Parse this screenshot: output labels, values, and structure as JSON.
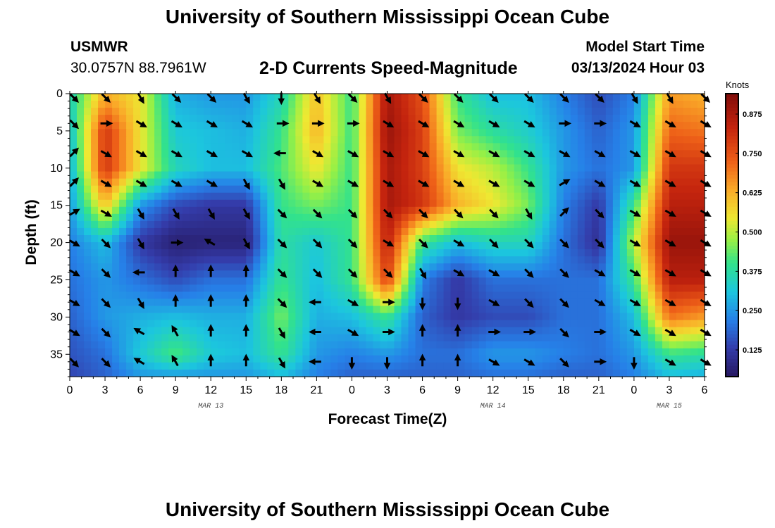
{
  "header": {
    "title": "University of Southern Mississippi Ocean Cube",
    "station": "USMWR",
    "coords": "30.0757N  88.7961W",
    "subtitle": "2-D Currents Speed-Magnitude",
    "start_label": "Model Start Time",
    "start_value": "03/13/2024 Hour 03"
  },
  "footer": {
    "title": "University of Southern Mississippi Ocean Cube"
  },
  "chart_data": {
    "type": "heatmap",
    "title": "2-D Currents Speed-Magnitude",
    "xlabel": "Forecast Time(Z)",
    "ylabel": "Depth (ft)",
    "x_range_hours": [
      0,
      54
    ],
    "ylim": [
      38,
      0
    ],
    "x_tick_labels": [
      "0",
      "3",
      "6",
      "9",
      "12",
      "15",
      "18",
      "21",
      "0",
      "3",
      "6",
      "9",
      "12",
      "15",
      "18",
      "21",
      "0",
      "3",
      "6"
    ],
    "y_ticks": [
      0,
      5,
      10,
      15,
      20,
      25,
      30,
      35
    ],
    "date_labels": [
      {
        "text": "MAR 13",
        "hour": 12
      },
      {
        "text": "MAR 14",
        "hour": 36
      },
      {
        "text": "MAR 15",
        "hour": 51
      }
    ],
    "colorbar": {
      "unit": "Knots",
      "min": 0.04,
      "max": 0.94,
      "ticks": [
        "0.125",
        "0.250",
        "0.375",
        "0.500",
        "0.625",
        "0.750",
        "0.875"
      ]
    },
    "speed_knots": {
      "x_hours": [
        0,
        3,
        6,
        9,
        12,
        15,
        18,
        21,
        24,
        27,
        30,
        33,
        36,
        39,
        42,
        45,
        48,
        51,
        54
      ],
      "depths_ft": [
        0,
        5,
        10,
        15,
        20,
        25,
        30,
        35,
        38
      ],
      "values": [
        [
          0.35,
          0.62,
          0.55,
          0.28,
          0.25,
          0.25,
          0.35,
          0.6,
          0.4,
          0.88,
          0.75,
          0.4,
          0.3,
          0.3,
          0.22,
          0.15,
          0.22,
          0.65,
          0.62
        ],
        [
          0.3,
          0.8,
          0.55,
          0.32,
          0.3,
          0.28,
          0.4,
          0.62,
          0.4,
          0.9,
          0.78,
          0.45,
          0.38,
          0.33,
          0.25,
          0.18,
          0.25,
          0.72,
          0.7
        ],
        [
          0.28,
          0.8,
          0.55,
          0.35,
          0.3,
          0.3,
          0.42,
          0.55,
          0.4,
          0.88,
          0.78,
          0.55,
          0.5,
          0.4,
          0.25,
          0.2,
          0.25,
          0.8,
          0.8
        ],
        [
          0.25,
          0.6,
          0.25,
          0.15,
          0.12,
          0.12,
          0.4,
          0.45,
          0.4,
          0.88,
          0.8,
          0.62,
          0.55,
          0.45,
          0.22,
          0.12,
          0.4,
          0.85,
          0.85
        ],
        [
          0.22,
          0.3,
          0.12,
          0.06,
          0.07,
          0.07,
          0.38,
          0.32,
          0.4,
          0.85,
          0.4,
          0.3,
          0.35,
          0.35,
          0.2,
          0.1,
          0.5,
          0.9,
          0.9
        ],
        [
          0.2,
          0.25,
          0.2,
          0.15,
          0.2,
          0.2,
          0.4,
          0.3,
          0.4,
          0.78,
          0.22,
          0.12,
          0.2,
          0.2,
          0.2,
          0.2,
          0.4,
          0.85,
          0.85
        ],
        [
          0.18,
          0.25,
          0.28,
          0.3,
          0.28,
          0.28,
          0.45,
          0.28,
          0.3,
          0.4,
          0.18,
          0.12,
          0.15,
          0.15,
          0.2,
          0.2,
          0.3,
          0.7,
          0.65
        ],
        [
          0.16,
          0.2,
          0.32,
          0.42,
          0.32,
          0.3,
          0.4,
          0.25,
          0.22,
          0.25,
          0.2,
          0.2,
          0.25,
          0.25,
          0.22,
          0.2,
          0.25,
          0.4,
          0.38
        ],
        [
          0.14,
          0.18,
          0.25,
          0.25,
          0.25,
          0.25,
          0.3,
          0.22,
          0.18,
          0.18,
          0.18,
          0.18,
          0.2,
          0.2,
          0.18,
          0.18,
          0.22,
          0.3,
          0.28
        ]
      ]
    },
    "direction_arrows": {
      "x_hours": [
        0,
        3,
        6,
        9,
        12,
        15,
        18,
        21,
        24,
        27,
        30,
        33,
        36,
        39,
        42,
        45,
        48,
        51,
        54
      ],
      "depths_ft": [
        0,
        4,
        8,
        12,
        16,
        20,
        24,
        28,
        32,
        36
      ],
      "unit": "degrees (0 = east, counterclockwise)",
      "angles": [
        [
          -45,
          -45,
          -60,
          -45,
          -45,
          -60,
          -90,
          -60,
          -45,
          -60,
          -45,
          -45,
          -45,
          -45,
          -45,
          -45,
          -60,
          -60,
          -45
        ],
        [
          -45,
          0,
          -30,
          -30,
          -30,
          -30,
          0,
          0,
          0,
          -30,
          -30,
          -30,
          -30,
          -30,
          0,
          0,
          -30,
          -30,
          -30
        ],
        [
          45,
          -30,
          -30,
          -30,
          -30,
          -30,
          180,
          -30,
          -30,
          -30,
          -30,
          -30,
          -30,
          -30,
          -30,
          -30,
          -30,
          -30,
          -30
        ],
        [
          45,
          -30,
          -30,
          -30,
          -30,
          -60,
          -60,
          -30,
          -30,
          -30,
          -30,
          -30,
          -30,
          -30,
          30,
          -30,
          -30,
          -30,
          -30
        ],
        [
          30,
          -30,
          -60,
          -60,
          -60,
          -60,
          -45,
          -45,
          -45,
          -45,
          -45,
          -45,
          -45,
          -60,
          45,
          -45,
          -30,
          -30,
          -30
        ],
        [
          -30,
          -45,
          -60,
          0,
          150,
          -60,
          -45,
          -45,
          -45,
          -30,
          -45,
          -30,
          -45,
          -45,
          -45,
          -45,
          -30,
          -30,
          -30
        ],
        [
          -30,
          -45,
          180,
          90,
          90,
          90,
          -45,
          -45,
          -45,
          -45,
          -60,
          -30,
          -30,
          -45,
          -45,
          -30,
          -30,
          -30,
          -30
        ],
        [
          -30,
          -45,
          -60,
          90,
          90,
          90,
          -45,
          180,
          -30,
          0,
          -90,
          -90,
          -30,
          -45,
          -45,
          -30,
          -30,
          -30,
          -30
        ],
        [
          -30,
          -45,
          150,
          120,
          90,
          90,
          -60,
          180,
          -30,
          0,
          90,
          90,
          0,
          0,
          -45,
          0,
          -30,
          -30,
          -30
        ],
        [
          -45,
          -45,
          150,
          120,
          90,
          90,
          -60,
          180,
          -90,
          -90,
          90,
          90,
          -30,
          -30,
          -45,
          0,
          -90,
          -30,
          -30
        ]
      ]
    }
  }
}
